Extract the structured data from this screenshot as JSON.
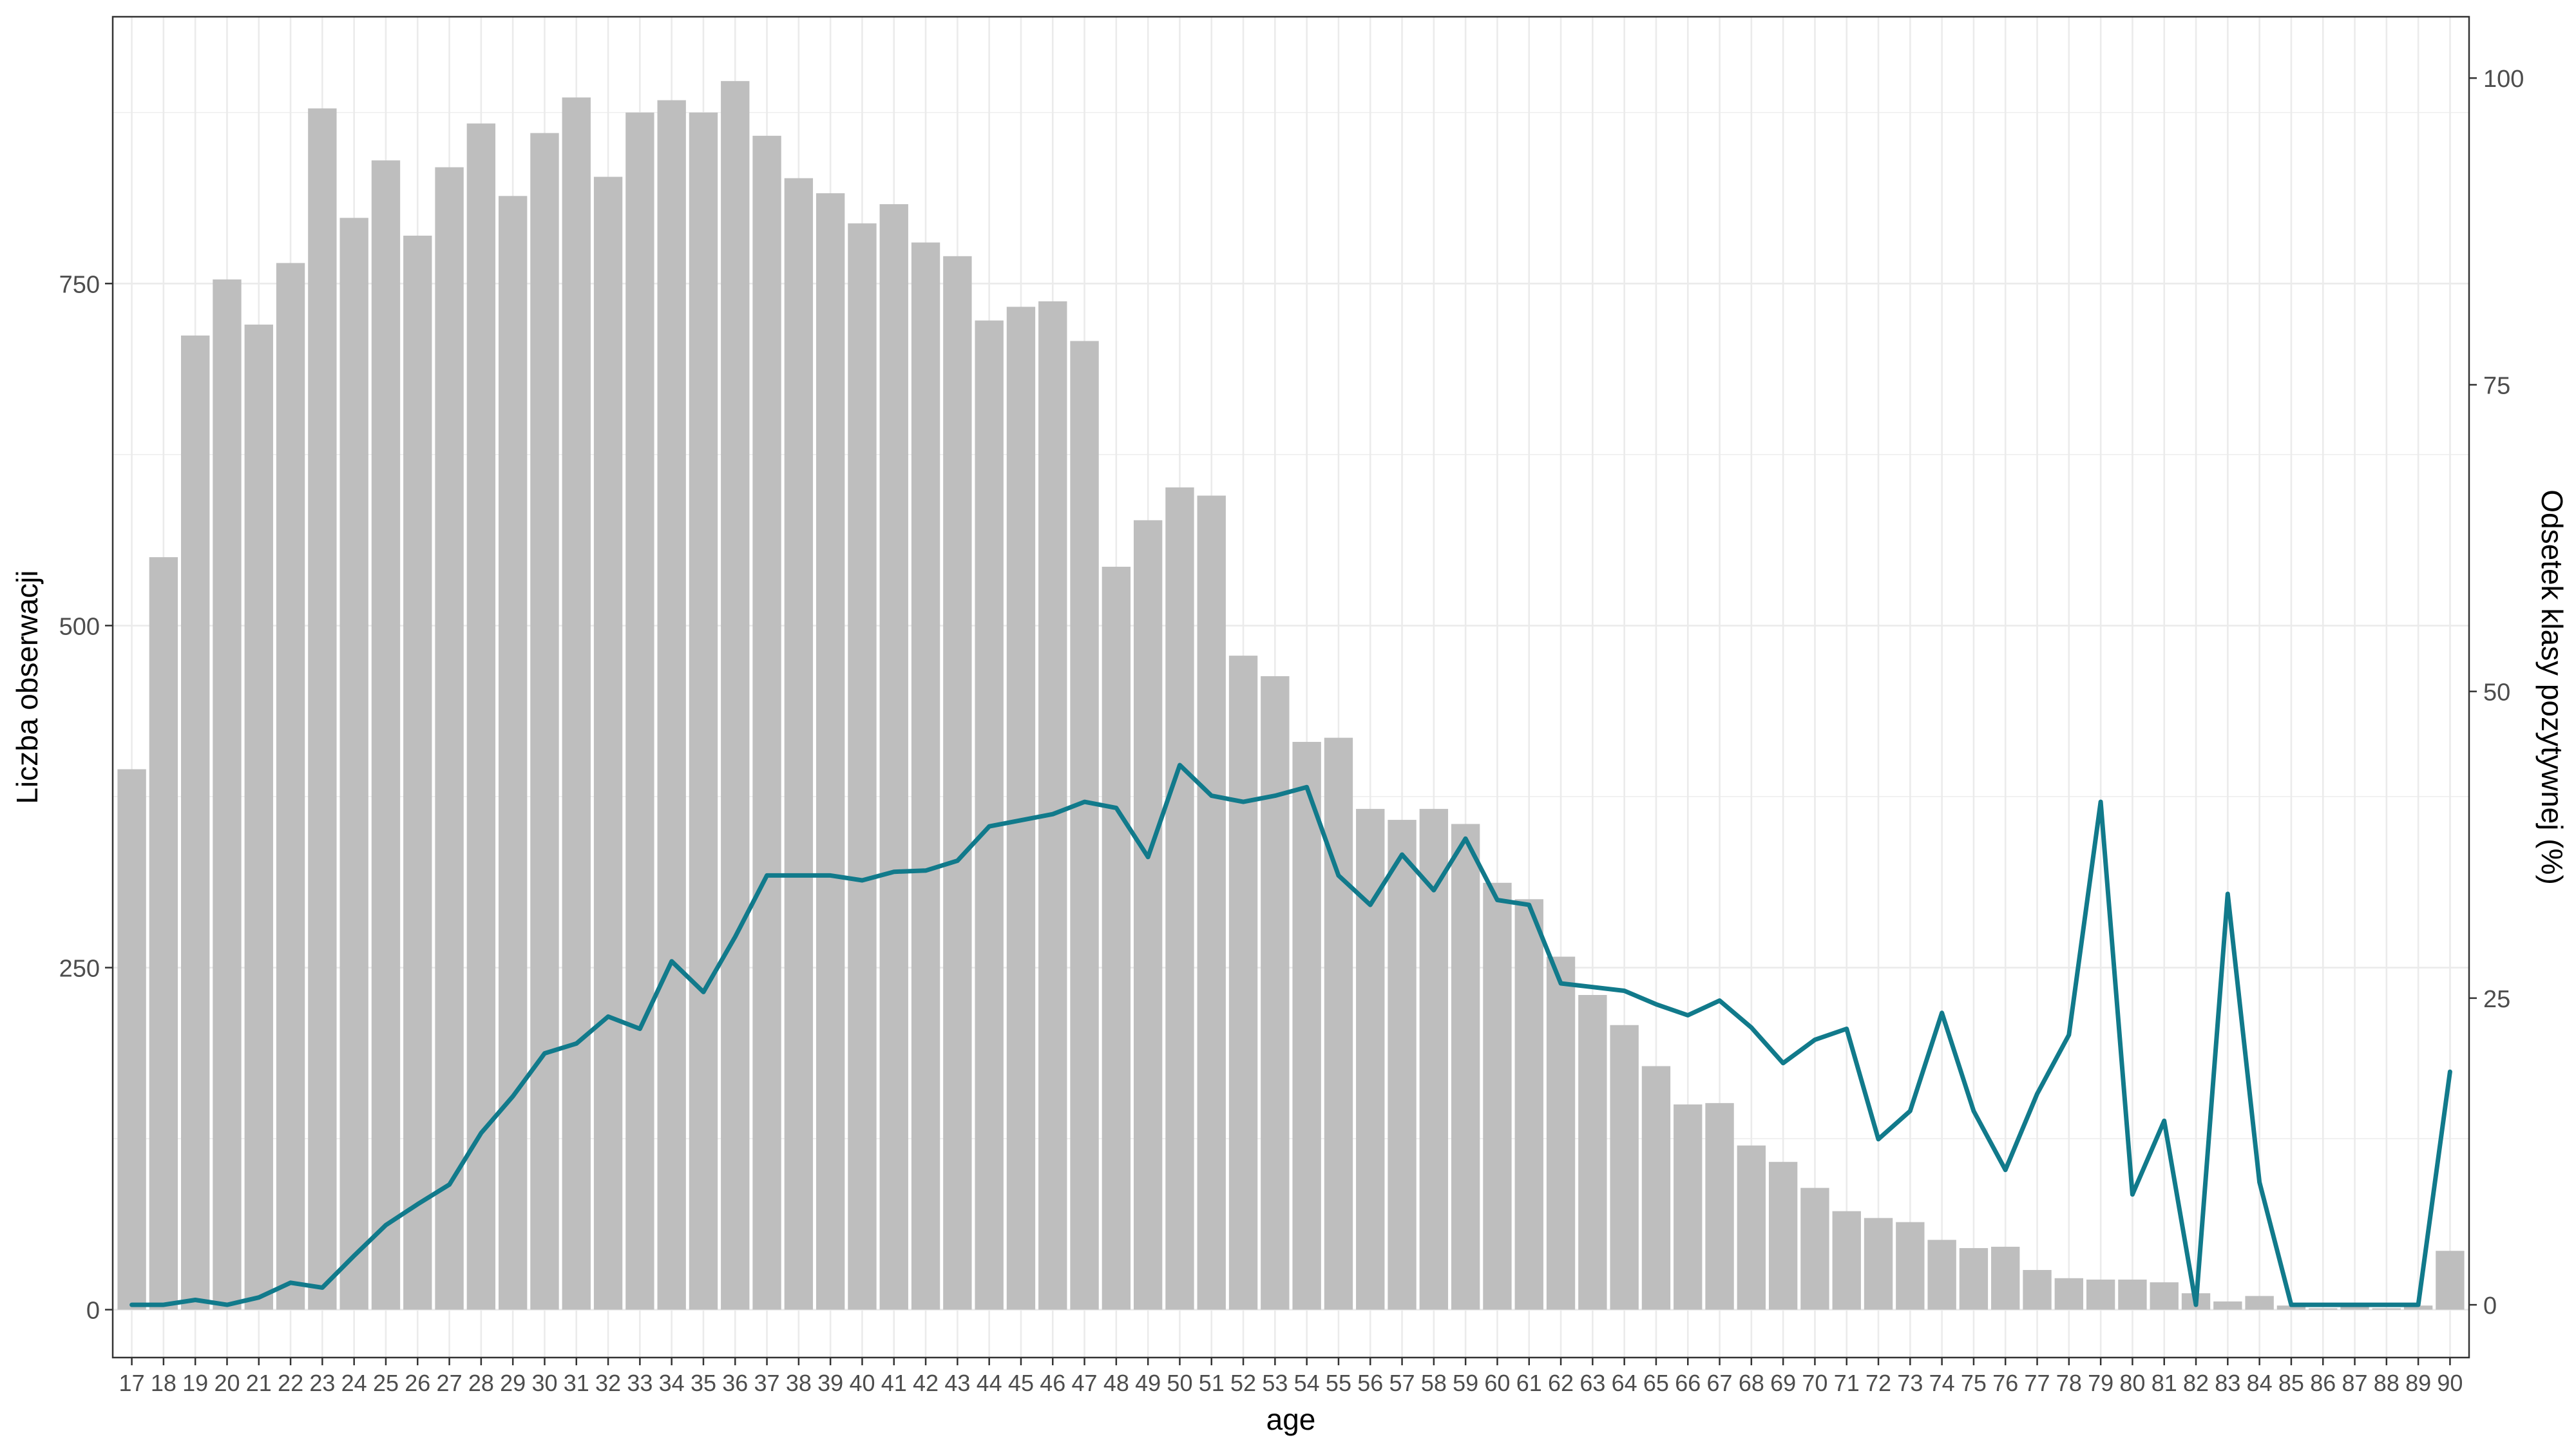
{
  "chart_data": {
    "type": "bar+line",
    "xlabel": "age",
    "ylabel_left": "Liczba obserwacji",
    "ylabel_right": "Odsetek klasy pozytywnej (%)",
    "categories": [
      17,
      18,
      19,
      20,
      21,
      22,
      23,
      24,
      25,
      26,
      27,
      28,
      29,
      30,
      31,
      32,
      33,
      34,
      35,
      36,
      37,
      38,
      39,
      40,
      41,
      42,
      43,
      44,
      45,
      46,
      47,
      48,
      49,
      50,
      51,
      52,
      53,
      54,
      55,
      56,
      57,
      58,
      59,
      60,
      61,
      62,
      63,
      64,
      65,
      66,
      67,
      68,
      69,
      70,
      71,
      72,
      73,
      74,
      75,
      76,
      77,
      78,
      79,
      80,
      81,
      82,
      83,
      84,
      85,
      86,
      87,
      88,
      89,
      90
    ],
    "series": [
      {
        "type": "bar",
        "axis": "left",
        "values": [
          395,
          550,
          712,
          753,
          720,
          765,
          878,
          798,
          840,
          785,
          835,
          867,
          814,
          860,
          886,
          828,
          875,
          884,
          875,
          898,
          858,
          827,
          816,
          794,
          808,
          780,
          770,
          723,
          733,
          737,
          708,
          543,
          577,
          601,
          595,
          478,
          463,
          415,
          418,
          366,
          358,
          366,
          355,
          312,
          300,
          258,
          230,
          208,
          178,
          150,
          151,
          120,
          108,
          89,
          72,
          67,
          64,
          51,
          45,
          46,
          29,
          23,
          22,
          22,
          20,
          12,
          6,
          10,
          3,
          1,
          3,
          1,
          3,
          43
        ]
      },
      {
        "type": "line",
        "axis": "right",
        "values": [
          0.0,
          0.0,
          0.4,
          0.0,
          0.6,
          1.8,
          1.4,
          4.0,
          6.5,
          8.2,
          9.8,
          14.0,
          17.0,
          20.5,
          21.3,
          23.5,
          22.5,
          28.0,
          25.5,
          30.0,
          35.0,
          35.0,
          35.0,
          34.6,
          35.3,
          35.4,
          36.2,
          39.0,
          39.5,
          40.0,
          41.0,
          40.5,
          36.5,
          44.0,
          41.5,
          41.0,
          41.5,
          42.2,
          35.0,
          32.6,
          36.7,
          33.8,
          38.0,
          33.0,
          32.6,
          26.2,
          25.9,
          25.6,
          24.5,
          23.6,
          24.8,
          22.6,
          19.7,
          21.6,
          22.5,
          13.5,
          15.8,
          23.8,
          15.8,
          11.0,
          17.2,
          22.0,
          41.0,
          9.0,
          15.0,
          0.0,
          33.5,
          10.0,
          0.0,
          0.0,
          0.0,
          0.0,
          0.0,
          19.0
        ]
      }
    ],
    "yticks_left": [
      0,
      250,
      500,
      750
    ],
    "yticks_right": [
      0,
      25,
      50,
      75,
      100
    ],
    "ylim_left": [
      -35,
      945
    ],
    "ylim_right": [
      -4.3,
      105
    ],
    "grid": true,
    "colors": {
      "bar": "#bebebe",
      "line": "#117a8b",
      "grid": "#ebebeb",
      "border": "#333333"
    }
  }
}
